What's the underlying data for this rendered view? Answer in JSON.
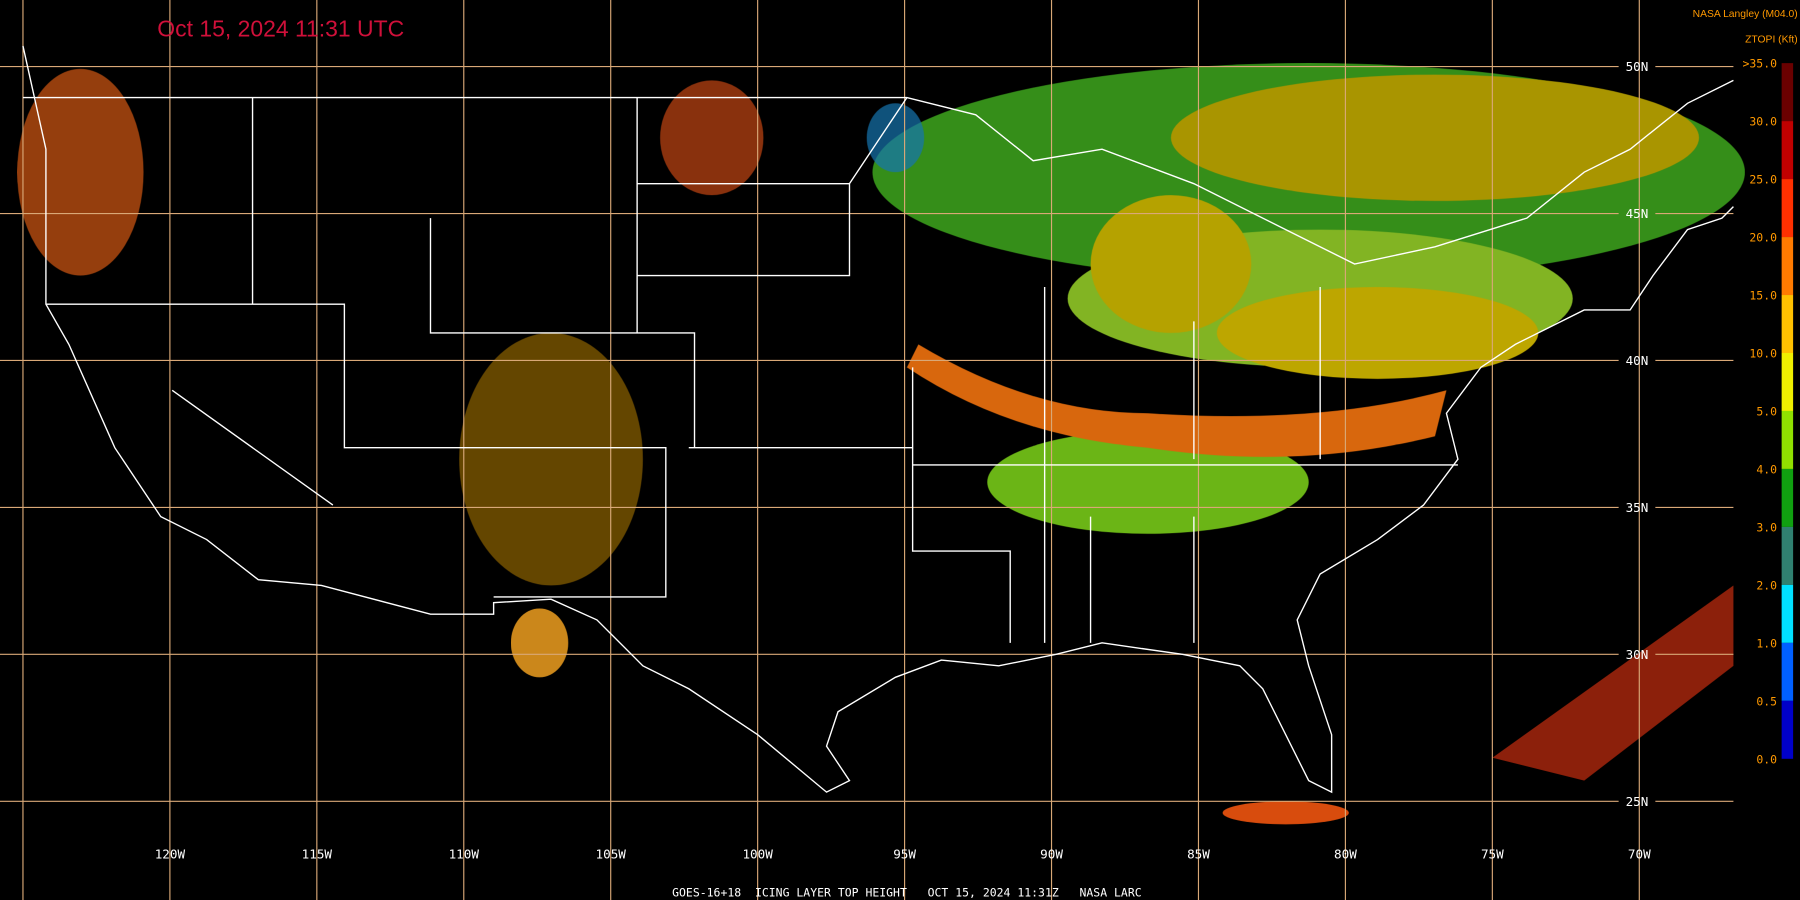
{
  "header": {
    "title": "Oct 15, 2024 11:31 UTC",
    "provider": "NASA Langley (M04.0)",
    "product": "ZTOPI (Kft)"
  },
  "colorbar": {
    "labels": [
      ">35.0",
      "30.0",
      "25.0",
      "20.0",
      "15.0",
      "10.0",
      "5.0",
      "4.0",
      "3.0",
      "2.0",
      "1.0",
      "0.5",
      "0.0"
    ]
  },
  "grid": {
    "longitudes": [
      "120W",
      "115W",
      "110W",
      "105W",
      "100W",
      "95W",
      "90W",
      "85W",
      "80W",
      "75W",
      "70W"
    ],
    "latitudes": [
      "50N",
      "45N",
      "40N",
      "35N",
      "30N",
      "25N"
    ]
  },
  "footer": "GOES-16+18  ICING LAYER TOP HEIGHT   OCT 15, 2024 11:31Z   NASA LARC"
}
